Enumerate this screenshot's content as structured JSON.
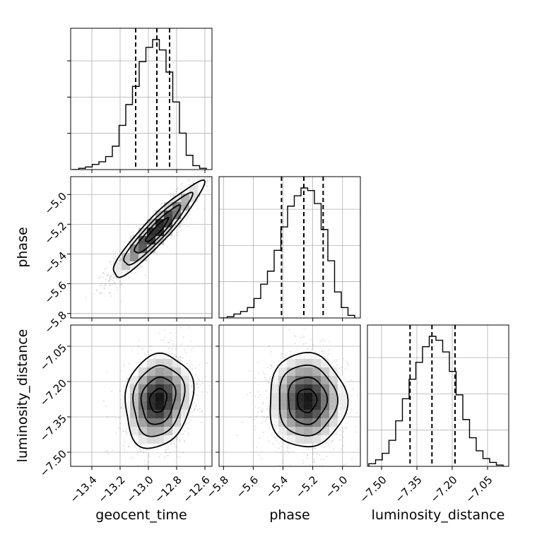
{
  "chart_data": {
    "type": "corner",
    "parameters": [
      "geocent_time",
      "phase",
      "luminosity_distance"
    ],
    "axis_labels": {
      "x": [
        "geocent_time",
        "phase",
        "luminosity_distance"
      ],
      "y": [
        "phase",
        "luminosity_distance"
      ]
    },
    "ranges": {
      "geocent_time": [
        -13.55,
        -12.55
      ],
      "phase": [
        -5.83,
        -4.88
      ],
      "luminosity_distance": [
        -7.56,
        -6.96
      ]
    },
    "ticks": {
      "geocent_time": [
        -13.4,
        -13.2,
        -13.0,
        -12.8,
        -12.6
      ],
      "phase": [
        -5.8,
        -5.6,
        -5.4,
        -5.2,
        -5.0
      ],
      "luminosity_distance": [
        -7.5,
        -7.35,
        -7.2,
        -7.05
      ]
    },
    "tick_labels": {
      "geocent_time": [
        "−13.4",
        "−13.2",
        "−13.0",
        "−12.8",
        "−12.6"
      ],
      "phase": [
        "−5.8",
        "−5.6",
        "−5.4",
        "−5.2",
        "−5.0"
      ],
      "luminosity_distance": [
        "−7.50",
        "−7.35",
        "−7.20",
        "−7.05"
      ]
    },
    "histograms": {
      "geocent_time": [
        0.0,
        0.01,
        0.02,
        0.04,
        0.06,
        0.1,
        0.18,
        0.34,
        0.5,
        0.64,
        0.83,
        0.94,
        1.0,
        0.92,
        0.75,
        0.52,
        0.28,
        0.11,
        0.03,
        0.01
      ],
      "phase": [
        0.0,
        0.01,
        0.03,
        0.05,
        0.08,
        0.15,
        0.26,
        0.36,
        0.52,
        0.7,
        0.86,
        0.94,
        1.0,
        0.98,
        0.88,
        0.68,
        0.44,
        0.2,
        0.08,
        0.02
      ],
      "luminosity_distance": [
        0.02,
        0.05,
        0.1,
        0.2,
        0.35,
        0.52,
        0.67,
        0.8,
        0.92,
        1.0,
        0.97,
        0.88,
        0.73,
        0.55,
        0.36,
        0.22,
        0.12,
        0.06,
        0.03,
        0.01
      ]
    },
    "quantiles": {
      "geocent_time": [
        -13.09,
        -12.94,
        -12.85
      ],
      "phase": [
        -5.41,
        -5.26,
        -5.13
      ],
      "luminosity_distance": [
        -7.379,
        -7.286,
        -7.188
      ]
    },
    "joint": [
      {
        "x": "geocent_time",
        "y": "phase",
        "peak": [
          -12.94,
          -5.24
        ],
        "sd": [
          0.16,
          0.16
        ],
        "rho": 0.93
      },
      {
        "x": "geocent_time",
        "y": "luminosity_distance",
        "peak": [
          -12.93,
          -7.28
        ],
        "sd": [
          0.12,
          0.1
        ],
        "rho": 0.15
      },
      {
        "x": "phase",
        "y": "luminosity_distance",
        "peak": [
          -5.24,
          -7.28
        ],
        "sd": [
          0.13,
          0.1
        ],
        "rho": 0.0
      }
    ],
    "contour_levels_sigma": [
      0.5,
      1.0,
      1.5,
      2.0
    ],
    "grid": true
  }
}
